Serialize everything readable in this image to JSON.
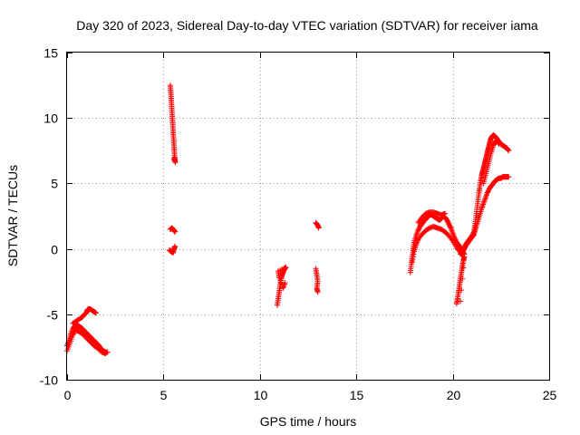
{
  "chart_data": {
    "type": "scatter",
    "title": "Day 320 of 2023, Sidereal Day-to-day VTEC variation (SDTVAR) for receiver iama",
    "xlabel": "GPS time / hours",
    "ylabel": "SDTVAR / TECUs",
    "xlim": [
      0,
      25
    ],
    "ylim": [
      -10,
      15
    ],
    "xticks": [
      0,
      5,
      10,
      15,
      20,
      25
    ],
    "yticks": [
      -10,
      -5,
      0,
      5,
      10,
      15
    ],
    "xtick_labels": [
      "0",
      "5",
      "10",
      "15",
      "20",
      "25"
    ],
    "ytick_labels": [
      "-10",
      "-5",
      "0",
      "5",
      "10",
      "15"
    ],
    "grid": true,
    "marker": "+",
    "marker_color": "#ff0000",
    "series": [
      {
        "name": "SDTVAR",
        "segments": [
          [
            [
              0.0,
              -7.4
            ],
            [
              0.1,
              -7.0
            ],
            [
              0.2,
              -6.5
            ],
            [
              0.3,
              -6.1
            ],
            [
              0.4,
              -5.9
            ],
            [
              0.5,
              -5.8
            ],
            [
              0.6,
              -5.9
            ],
            [
              0.7,
              -6.0
            ],
            [
              0.8,
              -6.1
            ],
            [
              0.9,
              -6.3
            ],
            [
              1.0,
              -6.4
            ],
            [
              1.1,
              -6.6
            ],
            [
              1.2,
              -6.7
            ],
            [
              1.3,
              -6.9
            ],
            [
              1.4,
              -7.0
            ],
            [
              1.5,
              -7.2
            ],
            [
              1.6,
              -7.3
            ],
            [
              1.7,
              -7.5
            ],
            [
              1.8,
              -7.7
            ],
            [
              1.9,
              -7.8
            ],
            [
              2.0,
              -7.9
            ],
            [
              2.1,
              -7.9
            ]
          ],
          [
            [
              0.0,
              -7.8
            ],
            [
              0.15,
              -7.2
            ],
            [
              0.3,
              -6.6
            ],
            [
              0.45,
              -6.2
            ],
            [
              0.6,
              -6.3
            ],
            [
              0.8,
              -6.5
            ],
            [
              1.0,
              -6.8
            ],
            [
              1.2,
              -7.1
            ],
            [
              1.4,
              -7.4
            ],
            [
              1.6,
              -7.6
            ],
            [
              1.8,
              -7.9
            ],
            [
              2.0,
              -8.0
            ]
          ],
          [
            [
              0.3,
              -5.7
            ],
            [
              0.5,
              -5.5
            ],
            [
              0.7,
              -5.3
            ],
            [
              0.8,
              -5.2
            ],
            [
              0.9,
              -5.0
            ],
            [
              1.0,
              -4.9
            ],
            [
              1.05,
              -4.7
            ],
            [
              1.1,
              -4.6
            ],
            [
              1.2,
              -4.6
            ],
            [
              1.3,
              -4.7
            ],
            [
              1.4,
              -4.8
            ],
            [
              1.5,
              -4.9
            ]
          ],
          [
            [
              5.35,
              12.5
            ],
            [
              5.38,
              12.0
            ],
            [
              5.4,
              11.5
            ],
            [
              5.42,
              11.0
            ],
            [
              5.44,
              10.5
            ],
            [
              5.46,
              10.0
            ],
            [
              5.48,
              9.5
            ],
            [
              5.5,
              9.0
            ],
            [
              5.52,
              8.5
            ],
            [
              5.54,
              8.0
            ],
            [
              5.56,
              7.5
            ],
            [
              5.58,
              7.0
            ],
            [
              5.6,
              6.7
            ],
            [
              5.55,
              6.9
            ],
            [
              5.62,
              6.6
            ]
          ],
          [
            [
              5.35,
              1.5
            ],
            [
              5.45,
              1.6
            ],
            [
              5.55,
              1.4
            ],
            [
              5.6,
              1.3
            ]
          ],
          [
            [
              5.3,
              -0.1
            ],
            [
              5.4,
              -0.2
            ],
            [
              5.5,
              -0.3
            ],
            [
              5.55,
              0.0
            ],
            [
              5.6,
              0.2
            ]
          ],
          [
            [
              10.9,
              -4.3
            ],
            [
              10.95,
              -3.8
            ],
            [
              11.0,
              -3.3
            ],
            [
              11.05,
              -2.8
            ],
            [
              11.1,
              -2.3
            ],
            [
              11.15,
              -2.0
            ],
            [
              11.2,
              -1.8
            ],
            [
              11.25,
              -1.6
            ],
            [
              11.3,
              -1.5
            ],
            [
              11.35,
              -1.4
            ],
            [
              10.95,
              -1.7
            ],
            [
              11.0,
              -2.2
            ],
            [
              11.2,
              -3.0
            ],
            [
              11.3,
              -2.6
            ]
          ],
          [
            [
              12.9,
              2.0
            ],
            [
              13.0,
              1.8
            ],
            [
              13.05,
              1.6
            ]
          ],
          [
            [
              12.9,
              -1.5
            ],
            [
              12.95,
              -2.0
            ],
            [
              13.0,
              -2.5
            ],
            [
              12.95,
              -3.0
            ],
            [
              13.0,
              -3.3
            ]
          ],
          [
            [
              17.8,
              -1.8
            ],
            [
              17.85,
              -1.2
            ],
            [
              17.9,
              -0.6
            ],
            [
              17.95,
              0.0
            ],
            [
              18.0,
              0.5
            ],
            [
              18.1,
              1.0
            ],
            [
              18.2,
              1.4
            ],
            [
              18.3,
              1.7
            ],
            [
              18.4,
              1.9
            ],
            [
              18.5,
              2.1
            ],
            [
              18.6,
              2.3
            ],
            [
              18.7,
              2.4
            ],
            [
              18.8,
              2.6
            ],
            [
              18.9,
              2.6
            ],
            [
              19.0,
              2.5
            ],
            [
              19.1,
              2.4
            ],
            [
              19.2,
              2.3
            ],
            [
              19.3,
              2.2
            ],
            [
              19.4,
              2.3
            ],
            [
              19.5,
              2.5
            ],
            [
              19.6,
              2.4
            ],
            [
              19.7,
              2.2
            ],
            [
              19.8,
              1.9
            ],
            [
              19.9,
              1.6
            ],
            [
              20.0,
              1.2
            ],
            [
              20.1,
              0.8
            ],
            [
              20.2,
              0.5
            ],
            [
              20.3,
              0.3
            ],
            [
              20.4,
              0.1
            ],
            [
              20.5,
              -0.2
            ],
            [
              20.6,
              -0.4
            ]
          ],
          [
            [
              17.9,
              -1.0
            ],
            [
              18.0,
              -0.2
            ],
            [
              18.1,
              0.3
            ],
            [
              18.2,
              0.7
            ],
            [
              18.4,
              1.1
            ],
            [
              18.6,
              1.4
            ],
            [
              18.8,
              1.6
            ],
            [
              19.0,
              1.7
            ],
            [
              19.2,
              1.6
            ],
            [
              19.4,
              1.5
            ],
            [
              19.6,
              1.3
            ],
            [
              19.8,
              1.0
            ],
            [
              20.0,
              0.6
            ],
            [
              20.2,
              0.1
            ],
            [
              20.4,
              -0.3
            ],
            [
              20.5,
              -0.5
            ]
          ],
          [
            [
              18.2,
              2.0
            ],
            [
              18.4,
              2.4
            ],
            [
              18.6,
              2.7
            ],
            [
              18.8,
              2.8
            ],
            [
              19.0,
              2.8
            ],
            [
              19.2,
              2.7
            ],
            [
              19.4,
              2.6
            ],
            [
              19.6,
              2.7
            ]
          ],
          [
            [
              20.2,
              -4.2
            ],
            [
              20.25,
              -3.8
            ],
            [
              20.3,
              -3.3
            ],
            [
              20.35,
              -2.8
            ],
            [
              20.4,
              -2.3
            ],
            [
              20.45,
              -1.8
            ],
            [
              20.5,
              -1.3
            ],
            [
              20.55,
              -0.9
            ],
            [
              20.6,
              -0.6
            ],
            [
              20.4,
              -4.0
            ]
          ],
          [
            [
              20.4,
              -0.4
            ],
            [
              20.5,
              -0.2
            ],
            [
              20.6,
              0.1
            ],
            [
              20.7,
              0.4
            ],
            [
              20.8,
              0.6
            ],
            [
              20.9,
              0.8
            ],
            [
              21.0,
              1.0
            ],
            [
              21.1,
              1.3
            ],
            [
              21.15,
              1.8
            ],
            [
              21.2,
              2.4
            ],
            [
              21.25,
              3.0
            ],
            [
              21.3,
              3.6
            ],
            [
              21.35,
              4.2
            ],
            [
              21.4,
              4.7
            ],
            [
              21.45,
              5.2
            ],
            [
              21.5,
              5.6
            ],
            [
              21.55,
              5.9
            ],
            [
              21.6,
              6.2
            ],
            [
              21.65,
              6.5
            ],
            [
              21.7,
              6.8
            ],
            [
              21.75,
              7.1
            ],
            [
              21.8,
              7.4
            ],
            [
              21.85,
              7.7
            ],
            [
              21.9,
              8.0
            ],
            [
              21.95,
              8.3
            ],
            [
              22.0,
              8.5
            ],
            [
              22.1,
              8.7
            ],
            [
              22.2,
              8.6
            ],
            [
              22.3,
              8.4
            ],
            [
              22.4,
              8.2
            ],
            [
              22.5,
              8.0
            ],
            [
              22.6,
              7.9
            ],
            [
              22.7,
              7.8
            ],
            [
              22.8,
              7.7
            ],
            [
              22.9,
              7.5
            ]
          ],
          [
            [
              20.5,
              -0.3
            ],
            [
              20.6,
              0.0
            ],
            [
              20.7,
              0.3
            ],
            [
              20.8,
              0.5
            ],
            [
              20.9,
              0.7
            ],
            [
              21.0,
              0.9
            ],
            [
              21.1,
              1.1
            ],
            [
              21.2,
              1.6
            ],
            [
              21.3,
              2.1
            ],
            [
              21.4,
              2.6
            ],
            [
              21.5,
              3.1
            ],
            [
              21.6,
              3.5
            ],
            [
              21.7,
              3.9
            ],
            [
              21.8,
              4.3
            ],
            [
              21.9,
              4.6
            ],
            [
              22.0,
              4.8
            ],
            [
              22.1,
              5.0
            ],
            [
              22.2,
              5.2
            ],
            [
              22.3,
              5.3
            ],
            [
              22.4,
              5.4
            ],
            [
              22.5,
              5.4
            ],
            [
              22.6,
              5.5
            ],
            [
              22.7,
              5.5
            ],
            [
              22.8,
              5.5
            ],
            [
              22.9,
              5.5
            ]
          ],
          [
            [
              21.6,
              5.0
            ],
            [
              21.7,
              5.6
            ],
            [
              21.8,
              6.2
            ],
            [
              21.9,
              6.8
            ],
            [
              22.0,
              7.4
            ],
            [
              22.1,
              7.9
            ],
            [
              22.2,
              8.2
            ],
            [
              22.3,
              8.3
            ],
            [
              22.4,
              8.0
            ]
          ]
        ]
      }
    ]
  }
}
